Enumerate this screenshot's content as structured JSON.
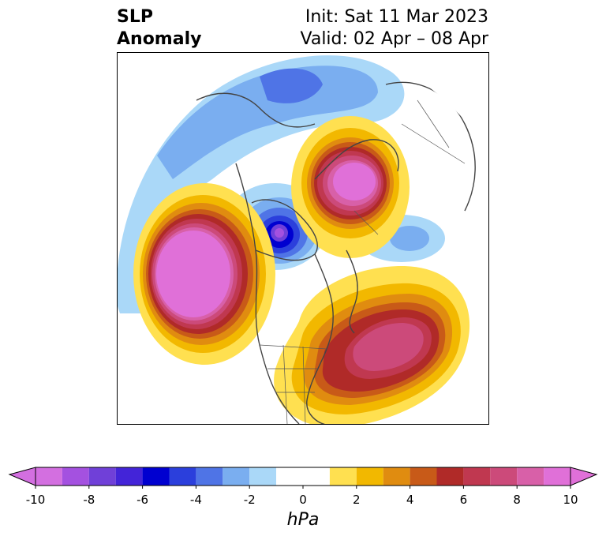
{
  "title": {
    "left_line1": "SLP",
    "left_line2": "Anomaly",
    "right_line1": "Init: Sat 11 Mar 2023",
    "right_line2": "Valid: 02 Apr – 08 Apr"
  },
  "map": {
    "projection": "north-polar stereographic",
    "features": [
      {
        "name": "pacific-high-anomaly",
        "sign": "positive",
        "peak_hPa": 10
      },
      {
        "name": "north-atlantic-high-anomaly",
        "sign": "positive",
        "peak_hPa": 8
      },
      {
        "name": "eurasian-arctic-high-anomaly",
        "sign": "positive",
        "peak_hPa": 10
      },
      {
        "name": "hudson-bay-low-anomaly",
        "sign": "negative",
        "peak_hPa": -8
      },
      {
        "name": "arctic-asia-low-anomaly",
        "sign": "negative",
        "peak_hPa": -5
      }
    ]
  },
  "colorbar": {
    "unit": "hPa",
    "min": -10,
    "max": 10,
    "extend": "both",
    "ticks": [
      "-10",
      "-8",
      "-6",
      "-4",
      "-2",
      "0",
      "2",
      "4",
      "6",
      "8",
      "10"
    ],
    "colors": [
      "#d36fe0",
      "#a451e0",
      "#7040d8",
      "#4324d8",
      "#0000d0",
      "#2b3fdc",
      "#4f74e6",
      "#7aaef0",
      "#aad8f8",
      "#ffffff",
      "#ffe050",
      "#f2b800",
      "#e08c10",
      "#c85a18",
      "#b02a28",
      "#c03850",
      "#cc4a7a",
      "#d860a8",
      "#e070d8"
    ]
  }
}
